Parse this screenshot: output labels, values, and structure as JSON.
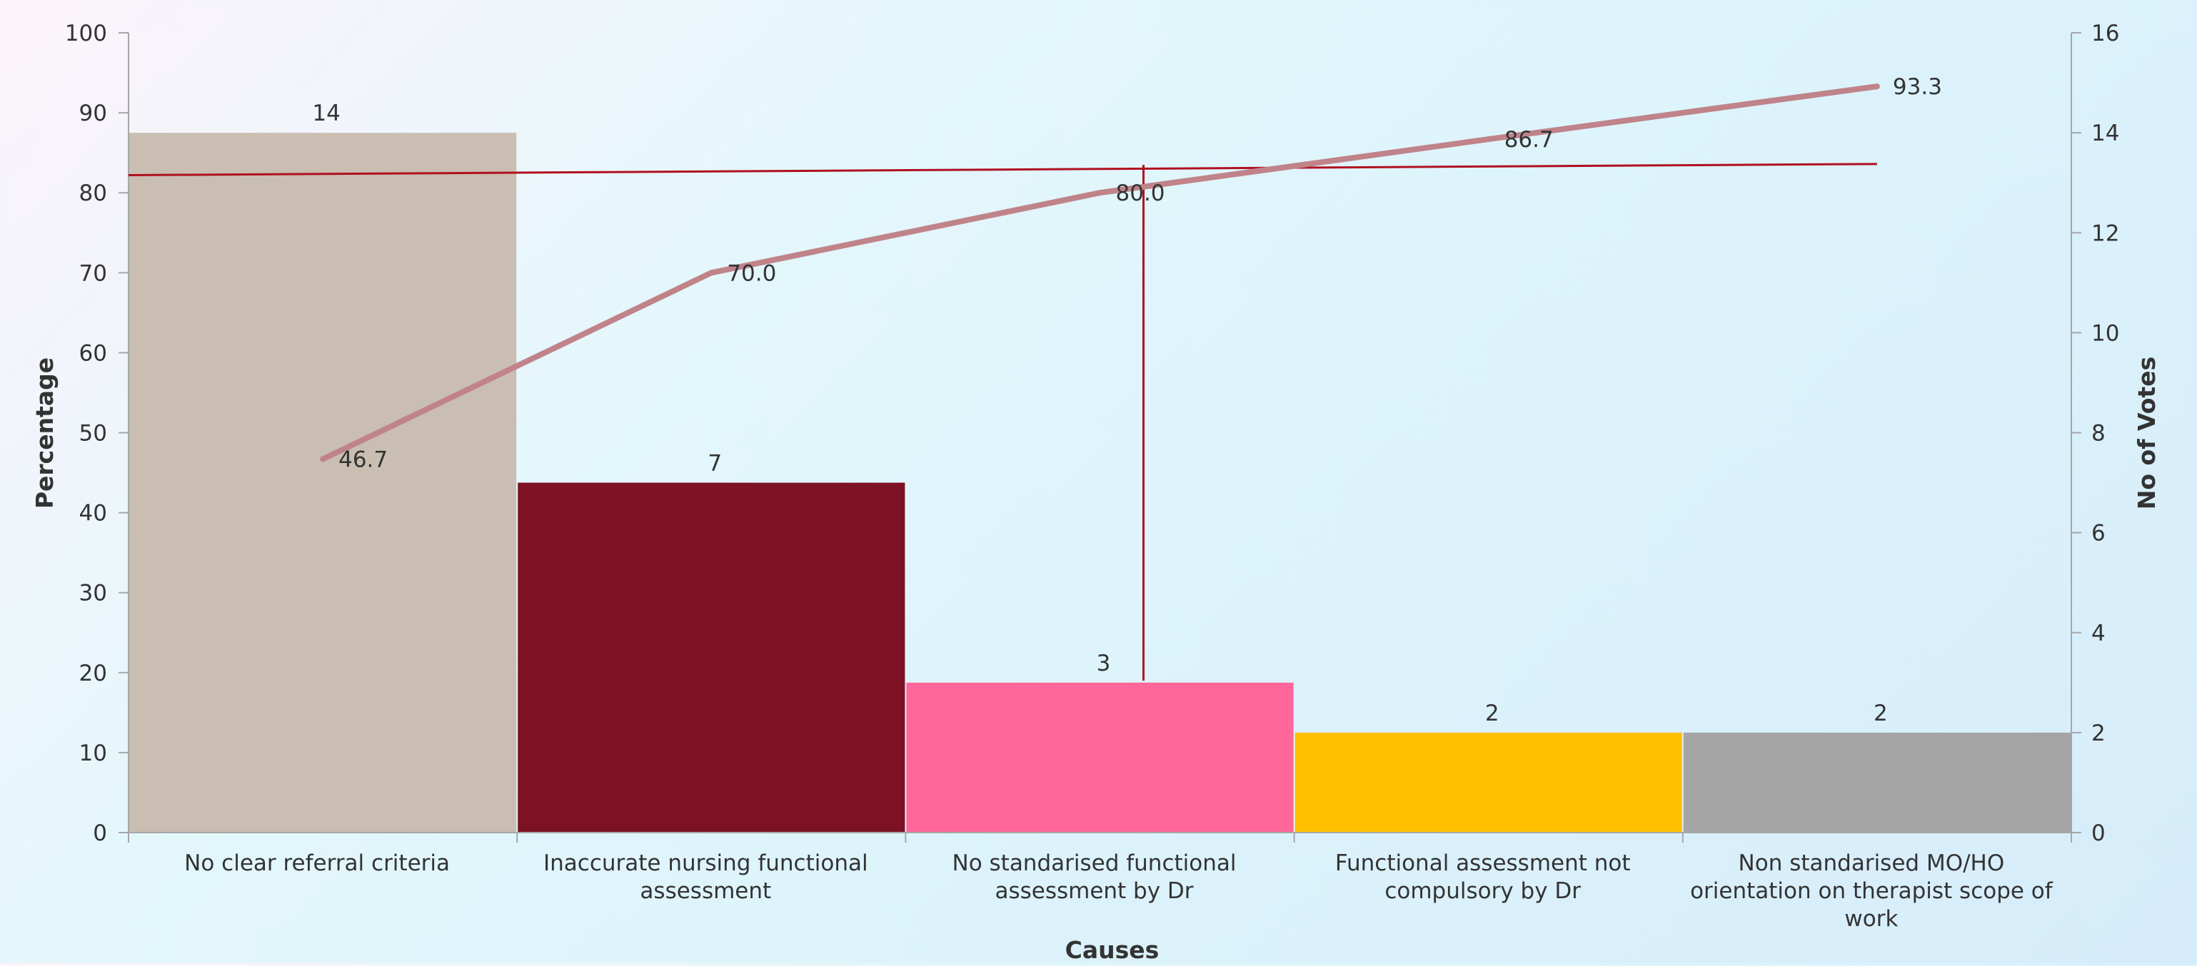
{
  "chart_data": {
    "type": "bar",
    "title": "",
    "xlabel": "Causes",
    "ylabel_left": "Percentage",
    "ylabel_right": "No of Votes",
    "categories": [
      "No clear referral criteria",
      "Inaccurate nursing functional assessment",
      "No standarised functional assessment by Dr",
      "Functional assessment not compulsory by Dr",
      "Non standarised MO/HO orientation on therapist scope of work"
    ],
    "category_lines": [
      [
        "No clear referral criteria"
      ],
      [
        "Inaccurate nursing functional",
        "assessment"
      ],
      [
        "No standarised functional",
        "assessment by Dr"
      ],
      [
        "Functional assessment not",
        "compulsory by Dr"
      ],
      [
        "Non standarised MO/HO",
        "orientation on therapist scope of",
        "work"
      ]
    ],
    "series": [
      {
        "name": "",
        "type": "bar",
        "axis": "right",
        "values": [
          14,
          7,
          3,
          2,
          2
        ],
        "labels": [
          "14",
          "7",
          "3",
          "2",
          "2"
        ],
        "colors": [
          "#c9beb1",
          "#7d1225",
          "#ff6699",
          "#ffc000",
          "#a5a5a5"
        ]
      },
      {
        "name": "",
        "type": "line",
        "axis": "left",
        "values": [
          46.7,
          70.0,
          80.0,
          86.7,
          93.3
        ],
        "labels": [
          "46.7",
          "70.0",
          "80.0",
          "86.7",
          "93.3"
        ],
        "color": "#c0838a"
      }
    ],
    "ylim_left": [
      0,
      100
    ],
    "yticks_left": [
      "0",
      "10",
      "20",
      "30",
      "40",
      "50",
      "60",
      "70",
      "80",
      "90",
      "100"
    ],
    "ylim_right": [
      0,
      16
    ],
    "yticks_right": [
      "0",
      "2",
      "4",
      "6",
      "8",
      "10",
      "12",
      "14",
      "16"
    ],
    "reference_line": {
      "axis": "left",
      "from": [
        0,
        82.2
      ],
      "to": [
        4.5,
        83.6
      ],
      "color": "#b01020"
    },
    "vertical_marker": {
      "x": 2,
      "axis": "left",
      "from": 19,
      "to": 83.5,
      "color": "#b01020"
    },
    "grid": false,
    "legend": "none"
  }
}
